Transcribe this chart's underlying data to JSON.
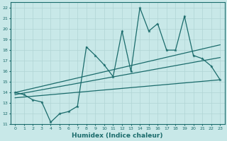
{
  "xlabel": "Humidex (Indice chaleur)",
  "bg_color": "#c8e8e8",
  "grid_color": "#b0d4d4",
  "line_color": "#1a6b6b",
  "xlim": [
    -0.5,
    23.5
  ],
  "ylim": [
    11,
    22.5
  ],
  "x_ticks": [
    0,
    1,
    2,
    3,
    4,
    5,
    6,
    7,
    8,
    9,
    10,
    11,
    12,
    13,
    14,
    15,
    16,
    17,
    18,
    19,
    20,
    21,
    22,
    23
  ],
  "y_ticks": [
    11,
    12,
    13,
    14,
    15,
    16,
    17,
    18,
    19,
    20,
    21,
    22
  ],
  "main_x": [
    0,
    1,
    2,
    3,
    4,
    5,
    6,
    7,
    8,
    9,
    10,
    11,
    12,
    13,
    14,
    15,
    16,
    17,
    18,
    19,
    20,
    21,
    22,
    23
  ],
  "main_y": [
    14.0,
    13.8,
    13.3,
    13.1,
    11.2,
    12.0,
    12.2,
    12.7,
    18.3,
    17.5,
    16.6,
    15.5,
    19.8,
    16.0,
    22.0,
    19.8,
    20.5,
    18.0,
    18.0,
    21.2,
    17.5,
    17.2,
    16.5,
    15.2
  ],
  "upper_line_x": [
    0,
    23
  ],
  "upper_line_y": [
    14.0,
    18.5
  ],
  "middle_line_x": [
    0,
    23
  ],
  "middle_line_y": [
    13.8,
    17.3
  ],
  "lower_line_x": [
    0,
    23
  ],
  "lower_line_y": [
    13.5,
    15.2
  ]
}
